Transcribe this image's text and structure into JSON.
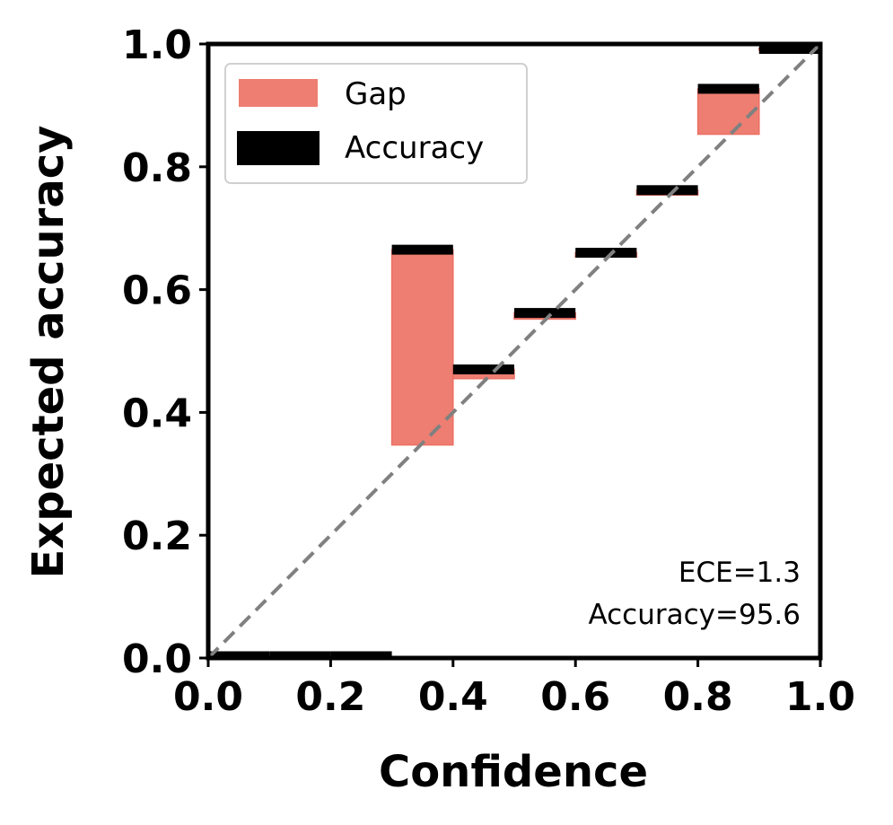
{
  "chart_data": {
    "type": "bar",
    "xlabel": "Confidence",
    "ylabel": "Expected accuracy",
    "xlim": [
      0,
      1
    ],
    "ylim": [
      0,
      1
    ],
    "xticks": [
      "0.0",
      "0.2",
      "0.4",
      "0.6",
      "0.8",
      "1.0"
    ],
    "yticks": [
      "0.0",
      "0.2",
      "0.4",
      "0.6",
      "0.8",
      "1.0"
    ],
    "bin_width": 0.1,
    "bins": [
      {
        "bin_start": 0.0,
        "accuracy": 0.0,
        "gap_low": 0.0,
        "gap_high": 0.0
      },
      {
        "bin_start": 0.1,
        "accuracy": 0.0,
        "gap_low": 0.0,
        "gap_high": 0.0
      },
      {
        "bin_start": 0.2,
        "accuracy": 0.0,
        "gap_low": 0.0,
        "gap_high": 0.0
      },
      {
        "bin_start": 0.3,
        "accuracy": 0.665,
        "gap_low": 0.347,
        "gap_high": 0.665
      },
      {
        "bin_start": 0.4,
        "accuracy": 0.47,
        "gap_low": 0.455,
        "gap_high": 0.47
      },
      {
        "bin_start": 0.5,
        "accuracy": 0.562,
        "gap_low": 0.552,
        "gap_high": 0.562
      },
      {
        "bin_start": 0.6,
        "accuracy": 0.66,
        "gap_low": 0.653,
        "gap_high": 0.66
      },
      {
        "bin_start": 0.7,
        "accuracy": 0.762,
        "gap_low": 0.754,
        "gap_high": 0.762
      },
      {
        "bin_start": 0.8,
        "accuracy": 0.927,
        "gap_low": 0.853,
        "gap_high": 0.927
      },
      {
        "bin_start": 0.9,
        "accuracy": 0.993,
        "gap_low": 0.99,
        "gap_high": 0.993
      }
    ],
    "legend": {
      "position": "upper-left",
      "entries": [
        "Gap",
        "Accuracy"
      ]
    },
    "annotations": [
      "ECE=1.3",
      "Accuracy=95.6"
    ],
    "diagonal_reference": true,
    "colors": {
      "gap": "#ec7063",
      "accuracy": "#000000",
      "diagonal": "#808080"
    }
  }
}
